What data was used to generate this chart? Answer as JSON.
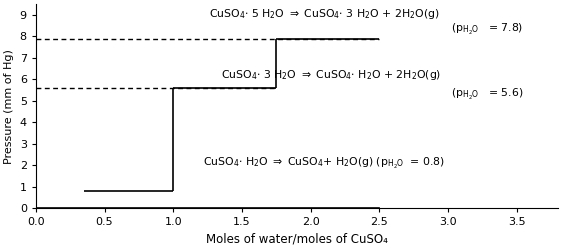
{
  "xlabel": "Moles of water/moles of CuSO₄",
  "ylabel": "Pressure (mm of Hg)",
  "ylim": [
    0,
    9.5
  ],
  "xlim": [
    0,
    3.8
  ],
  "yticks": [
    0,
    1,
    2,
    3,
    4,
    5,
    6,
    7,
    8,
    9
  ],
  "background_color": "#ffffff",
  "step_lines": [
    {
      "x": [
        0.35,
        1.0
      ],
      "y": [
        0.8,
        0.8
      ]
    },
    {
      "x": [
        1.0,
        1.0
      ],
      "y": [
        0.8,
        5.6
      ]
    },
    {
      "x": [
        1.0,
        1.75
      ],
      "y": [
        5.6,
        5.6
      ]
    },
    {
      "x": [
        1.75,
        1.75
      ],
      "y": [
        5.6,
        7.9
      ]
    },
    {
      "x": [
        1.75,
        2.5
      ],
      "y": [
        7.9,
        7.9
      ]
    }
  ],
  "dashed_lines": [
    {
      "x": [
        0.0,
        1.75
      ],
      "y": [
        5.6,
        5.6
      ]
    },
    {
      "x": [
        0.0,
        2.5
      ],
      "y": [
        7.9,
        7.9
      ]
    }
  ],
  "baseline": {
    "x": [
      0,
      2.5
    ],
    "y": [
      0,
      0
    ]
  },
  "ann_rxn1_x": 2.1,
  "ann_rxn1_y": 9.05,
  "ann_p78_x": 3.55,
  "ann_p78_y": 8.3,
  "ann_rxn2_x": 2.15,
  "ann_rxn2_y": 6.2,
  "ann_p56_x": 3.55,
  "ann_p56_y": 5.3,
  "ann_rxn3_x": 2.1,
  "ann_rxn3_y": 2.1,
  "fontsize_rxn": 7.8,
  "fontsize_p": 7.8
}
